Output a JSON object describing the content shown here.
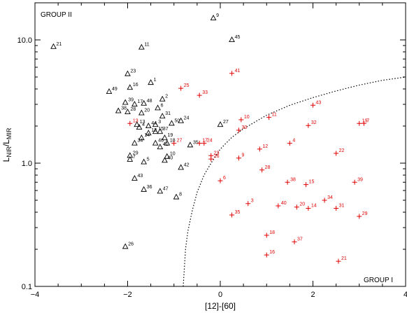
{
  "chart_data": {
    "type": "scatter",
    "xlabel": "[12]-[60]",
    "ylabel": {
      "base": "L",
      "num_sub": "NIR",
      "den_sub": "MIR"
    },
    "xlim": [
      -4,
      4
    ],
    "ylim": [
      0.1,
      20
    ],
    "yscale": "log",
    "x_ticks": [
      -4,
      -2,
      0,
      2,
      4
    ],
    "x_tick_labels": [
      "−4",
      "−2",
      "0",
      "2",
      "4"
    ],
    "y_ticks": [
      0.1,
      1,
      10
    ],
    "y_tick_labels": [
      "0.1",
      "1.0",
      "10.0"
    ],
    "annotations": [
      {
        "text": "GROUP II",
        "position": "top-left"
      },
      {
        "text": "GROUP I",
        "position": "bottom-right"
      }
    ],
    "colors": {
      "group2": "#000000",
      "group1": "#e00000"
    },
    "boundary_curve": {
      "style": "dotted",
      "x": [
        -0.8,
        -0.75,
        -0.7,
        -0.6,
        -0.5,
        -0.35,
        -0.2,
        0,
        0.25,
        0.5,
        1.0,
        1.5,
        2.0,
        2.5,
        3.0,
        3.5,
        4.0
      ],
      "y": [
        0.1,
        0.2,
        0.28,
        0.42,
        0.58,
        0.8,
        1.0,
        1.3,
        1.62,
        1.9,
        2.45,
        2.95,
        3.4,
        3.85,
        4.3,
        4.7,
        5.0
      ]
    },
    "series": [
      {
        "marker": "triangle",
        "points": [
          {
            "label": "1",
            "x": -1.5,
            "y": 4.5
          },
          {
            "label": "2",
            "x": -1.25,
            "y": 3.3
          },
          {
            "label": "3",
            "x": -1.4,
            "y": 2.05
          },
          {
            "label": "4",
            "x": -1.75,
            "y": 1.95
          },
          {
            "label": "5",
            "x": -1.65,
            "y": 1.02
          },
          {
            "label": "6",
            "x": -1.35,
            "y": 2.8
          },
          {
            "label": "7",
            "x": -1.95,
            "y": 1.07
          },
          {
            "label": "8",
            "x": -0.95,
            "y": 0.53
          },
          {
            "label": "9",
            "x": -0.15,
            "y": 15.0
          },
          {
            "label": "10",
            "x": -1.15,
            "y": 1.13
          },
          {
            "label": "11",
            "x": -1.7,
            "y": 8.7
          },
          {
            "label": "12",
            "x": -1.55,
            "y": 1.75
          },
          {
            "label": "13",
            "x": -1.8,
            "y": 2.05
          },
          {
            "label": "14",
            "x": -1.7,
            "y": 1.6
          },
          {
            "label": "15",
            "x": -1.4,
            "y": 1.8
          },
          {
            "label": "16",
            "x": -1.95,
            "y": 4.1
          },
          {
            "label": "17",
            "x": -1.85,
            "y": 3.0
          },
          {
            "label": "18",
            "x": -1.15,
            "y": 1.45
          },
          {
            "label": "19",
            "x": -1.2,
            "y": 1.6
          },
          {
            "label": "20",
            "x": -1.7,
            "y": 2.55
          },
          {
            "label": "21",
            "x": -3.6,
            "y": 8.8
          },
          {
            "label": "23",
            "x": -2.0,
            "y": 5.3
          },
          {
            "label": "24",
            "x": -0.85,
            "y": 2.2
          },
          {
            "label": "26",
            "x": -2.05,
            "y": 0.21
          },
          {
            "label": "27",
            "x": 0.0,
            "y": 2.05
          },
          {
            "label": "28",
            "x": -2.0,
            "y": 2.6
          },
          {
            "label": "29",
            "x": -1.95,
            "y": 1.15
          },
          {
            "label": "31",
            "x": -1.25,
            "y": 2.4
          },
          {
            "label": "34",
            "x": -1.85,
            "y": 1.45
          },
          {
            "label": "35",
            "x": -0.65,
            "y": 1.4
          },
          {
            "label": "36",
            "x": -1.65,
            "y": 0.61
          },
          {
            "label": "37",
            "x": -1.3,
            "y": 1.8
          },
          {
            "label": "38",
            "x": -2.2,
            "y": 2.65
          },
          {
            "label": "39",
            "x": -2.05,
            "y": 3.1
          },
          {
            "label": "40",
            "x": -1.2,
            "y": 1.05
          },
          {
            "label": "41",
            "x": -1.3,
            "y": 1.35
          },
          {
            "label": "42",
            "x": -0.85,
            "y": 0.92
          },
          {
            "label": "43",
            "x": -1.85,
            "y": 0.75
          },
          {
            "label": "44",
            "x": -1.55,
            "y": 2.0
          },
          {
            "label": "45",
            "x": 0.25,
            "y": 10.0
          },
          {
            "label": "46",
            "x": -1.4,
            "y": 1.45
          },
          {
            "label": "47",
            "x": -1.3,
            "y": 0.59
          },
          {
            "label": "48",
            "x": -1.65,
            "y": 3.05
          },
          {
            "label": "49",
            "x": -2.4,
            "y": 3.8
          },
          {
            "label": "50",
            "x": -1.05,
            "y": 2.1
          }
        ]
      },
      {
        "marker": "plus",
        "points": [
          {
            "label": "3",
            "x": 0.6,
            "y": 0.47
          },
          {
            "label": "4",
            "x": 1.5,
            "y": 1.45
          },
          {
            "label": "6",
            "x": 0.0,
            "y": 0.72
          },
          {
            "label": "9",
            "x": 0.4,
            "y": 1.1
          },
          {
            "label": "10",
            "x": 0.45,
            "y": 2.25
          },
          {
            "label": "11",
            "x": 1.05,
            "y": 2.35
          },
          {
            "label": "12",
            "x": 0.85,
            "y": 1.3
          },
          {
            "label": "13",
            "x": -1.95,
            "y": 2.1
          },
          {
            "label": "14",
            "x": 1.9,
            "y": 0.43
          },
          {
            "label": "15",
            "x": 1.85,
            "y": 0.67
          },
          {
            "label": "16",
            "x": 1.0,
            "y": 0.18
          },
          {
            "label": "17",
            "x": -0.45,
            "y": 1.45
          },
          {
            "label": "18",
            "x": 1.0,
            "y": 0.26
          },
          {
            "label": "19",
            "x": 3.0,
            "y": 2.1
          },
          {
            "label": "20",
            "x": 1.65,
            "y": 0.44
          },
          {
            "label": "21",
            "x": 2.55,
            "y": 0.16
          },
          {
            "label": "22",
            "x": 2.5,
            "y": 1.2
          },
          {
            "label": "23",
            "x": -0.2,
            "y": 1.15
          },
          {
            "label": "24",
            "x": -0.35,
            "y": 1.45
          },
          {
            "label": "25",
            "x": -0.85,
            "y": 4.05
          },
          {
            "label": "26",
            "x": -0.2,
            "y": 1.08
          },
          {
            "label": "27",
            "x": -1.0,
            "y": 1.45
          },
          {
            "label": "28",
            "x": 0.9,
            "y": 0.88
          },
          {
            "label": "29",
            "x": 3.0,
            "y": 0.37
          },
          {
            "label": "30",
            "x": 0.4,
            "y": 1.85
          },
          {
            "label": "31",
            "x": 2.5,
            "y": 0.43
          },
          {
            "label": "32",
            "x": 1.9,
            "y": 2.02
          },
          {
            "label": "33",
            "x": -0.45,
            "y": 3.55
          },
          {
            "label": "34",
            "x": 2.25,
            "y": 0.5
          },
          {
            "label": "35",
            "x": 0.25,
            "y": 0.38
          },
          {
            "label": "37",
            "x": 1.6,
            "y": 0.23
          },
          {
            "label": "38",
            "x": 1.45,
            "y": 0.7
          },
          {
            "label": "39",
            "x": 2.9,
            "y": 0.7
          },
          {
            "label": "40",
            "x": 1.25,
            "y": 0.45
          },
          {
            "label": "41",
            "x": 0.25,
            "y": 5.35
          },
          {
            "label": "43",
            "x": 2.0,
            "y": 2.95
          },
          {
            "label": "7",
            "x": 3.1,
            "y": 2.1
          }
        ]
      }
    ]
  }
}
